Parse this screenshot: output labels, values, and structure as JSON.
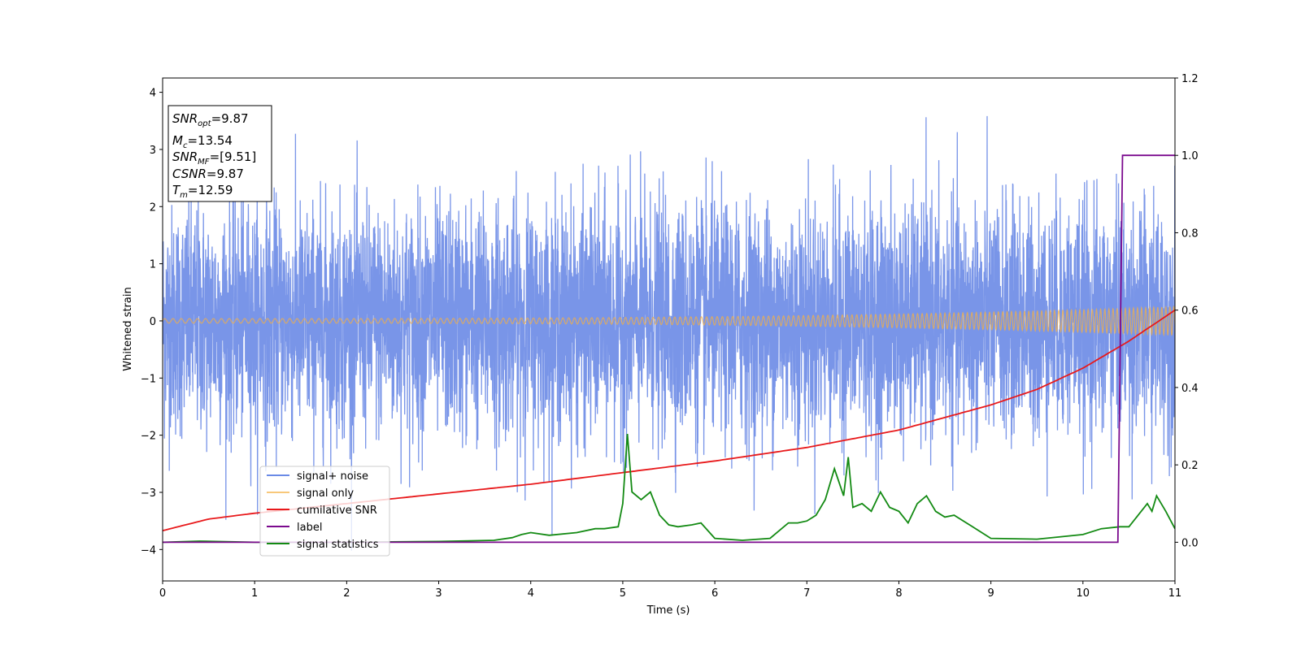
{
  "chart_data": {
    "type": "line",
    "title": "",
    "xlabel": "Time (s)",
    "ylabel": "Whitened strain",
    "y2label": "",
    "xlim": [
      0,
      11
    ],
    "ylim": [
      -4.55,
      4.25
    ],
    "y2lim": [
      -0.1,
      1.2
    ],
    "xticks": [
      "0",
      "1",
      "2",
      "3",
      "4",
      "5",
      "6",
      "7",
      "8",
      "9",
      "10",
      "11"
    ],
    "yticks": [
      "−4",
      "−3",
      "−2",
      "−1",
      "0",
      "1",
      "2",
      "3",
      "4"
    ],
    "y2ticks": [
      "0.0",
      "0.2",
      "0.4",
      "0.6",
      "0.8",
      "1.0",
      "1.2"
    ],
    "grid": false,
    "legend_position": "lower-left",
    "legend": [
      "signal+ noise",
      "signal only",
      "cumilative SNR",
      "label",
      "signal statistics"
    ],
    "colors": {
      "signal_noise": "#6a8ae6",
      "signal_only": "#f5b041",
      "cumulative_snr": "#e8191b",
      "label": "#7b0a8e",
      "signal_statistics": "#138a13"
    },
    "annotation_box": {
      "snr_opt": {
        "sym": "SNR",
        "sub": "opt",
        "value": "=9.87"
      },
      "mc": {
        "sym": "M",
        "sub": "c",
        "value": "=13.54"
      },
      "snr_mf": {
        "sym": "SNR",
        "sub": "MF",
        "value": "=[9.51]"
      },
      "csnr": {
        "sym": "CSNR",
        "sub": "",
        "value": "=9.87"
      },
      "tm": {
        "sym": "T",
        "sub": "m",
        "value": "=12.59"
      }
    },
    "series": [
      {
        "name": "signal+ noise",
        "axis": "left",
        "description_range": [
          -4.1,
          3.8
        ],
        "noise_amplitude_std": 1.0,
        "x_range": [
          0,
          11
        ]
      },
      {
        "name": "signal only",
        "axis": "left",
        "x_range": [
          0,
          11
        ],
        "envelope_start": 0.04,
        "envelope_end": 0.25
      },
      {
        "name": "cumilative SNR",
        "axis": "right",
        "x": [
          0,
          0.5,
          1,
          2,
          3,
          4,
          5,
          6,
          7,
          8,
          9,
          9.5,
          10,
          10.5,
          11
        ],
        "y": [
          0.03,
          0.06,
          0.075,
          0.1,
          0.125,
          0.15,
          0.18,
          0.21,
          0.245,
          0.29,
          0.355,
          0.395,
          0.45,
          0.52,
          0.6
        ]
      },
      {
        "name": "label",
        "axis": "right",
        "x": [
          0,
          10.38,
          10.43,
          11
        ],
        "y": [
          0.0,
          0.0,
          1.0,
          1.0
        ]
      },
      {
        "name": "signal statistics",
        "axis": "right",
        "x": [
          0,
          0.4,
          1,
          2,
          3,
          3.6,
          3.8,
          3.9,
          4.0,
          4.2,
          4.5,
          4.7,
          4.8,
          4.95,
          5.0,
          5.05,
          5.1,
          5.2,
          5.3,
          5.4,
          5.5,
          5.6,
          5.75,
          5.85,
          6.0,
          6.3,
          6.6,
          6.8,
          6.9,
          7.0,
          7.1,
          7.2,
          7.3,
          7.4,
          7.45,
          7.5,
          7.6,
          7.7,
          7.8,
          7.9,
          8.0,
          8.1,
          8.2,
          8.3,
          8.4,
          8.5,
          8.6,
          8.8,
          9.0,
          9.5,
          10.0,
          10.2,
          10.4,
          10.5,
          10.6,
          10.7,
          10.75,
          10.8,
          10.9,
          11.0
        ],
        "y": [
          0.0,
          0.003,
          0.0,
          0.0,
          0.002,
          0.005,
          0.012,
          0.02,
          0.025,
          0.018,
          0.025,
          0.035,
          0.035,
          0.04,
          0.1,
          0.28,
          0.13,
          0.11,
          0.13,
          0.07,
          0.045,
          0.04,
          0.045,
          0.05,
          0.01,
          0.005,
          0.01,
          0.05,
          0.05,
          0.055,
          0.07,
          0.11,
          0.19,
          0.12,
          0.22,
          0.09,
          0.1,
          0.08,
          0.13,
          0.09,
          0.08,
          0.05,
          0.1,
          0.12,
          0.08,
          0.065,
          0.07,
          0.04,
          0.01,
          0.008,
          0.02,
          0.035,
          0.04,
          0.04,
          0.07,
          0.1,
          0.08,
          0.12,
          0.08,
          0.035
        ]
      }
    ]
  }
}
